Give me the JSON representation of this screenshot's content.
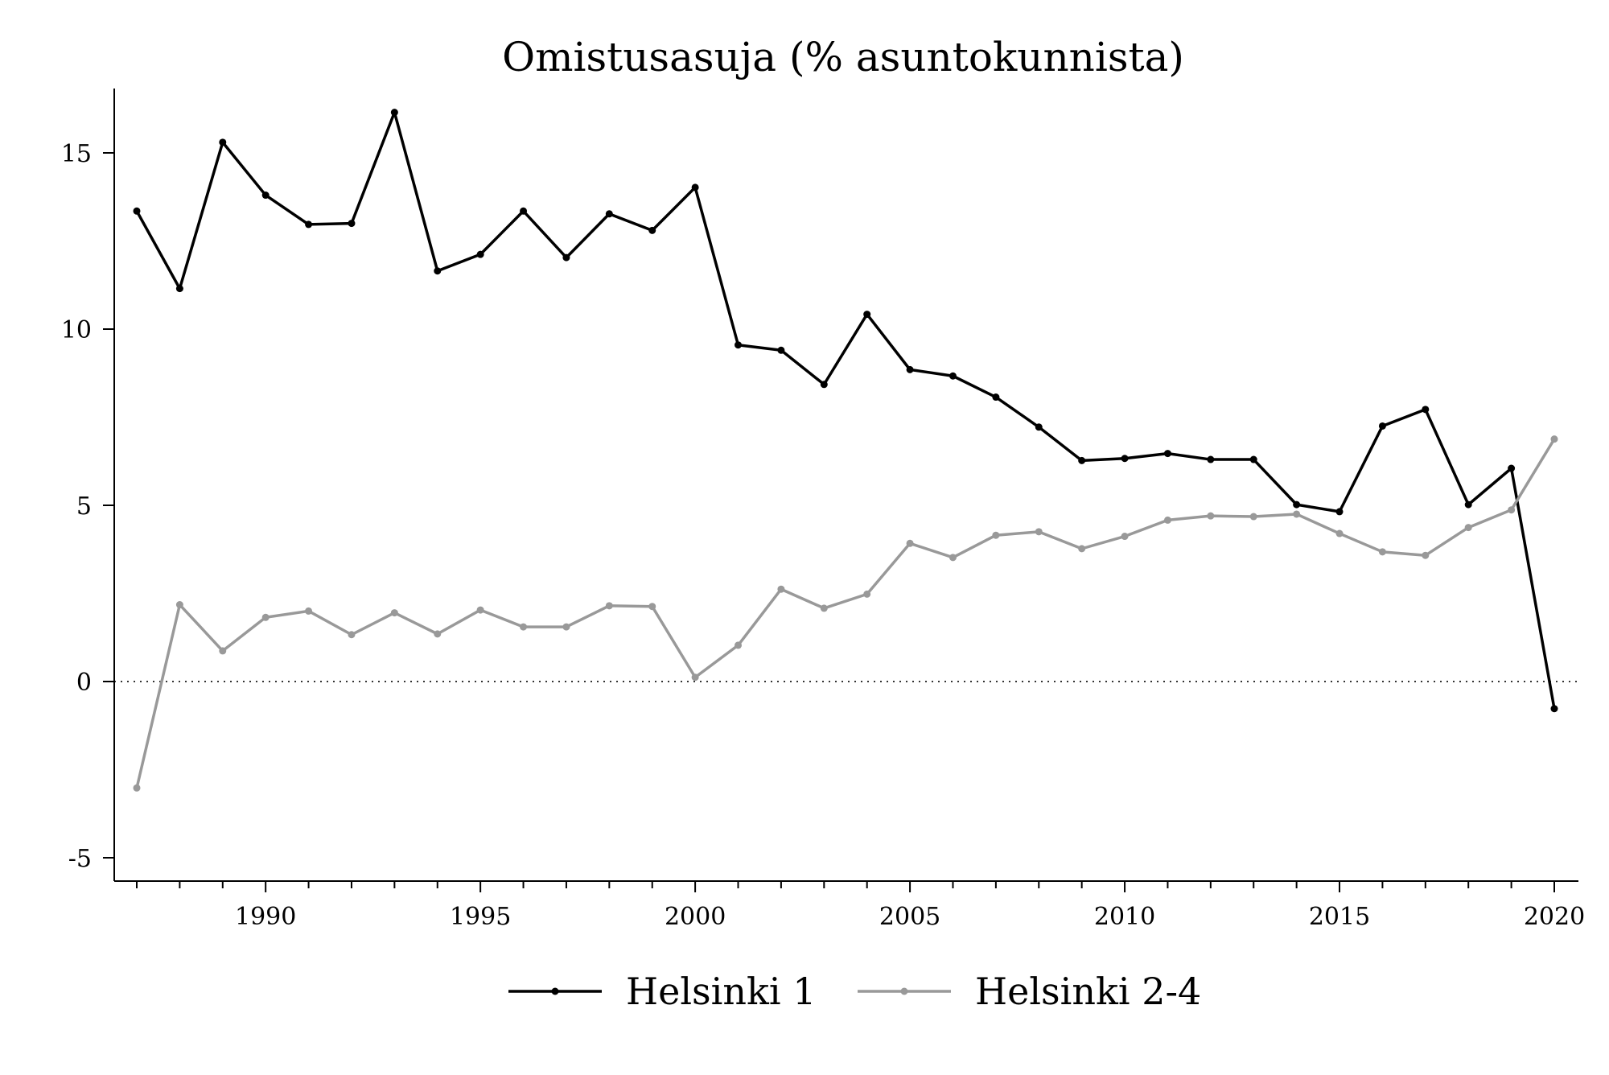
{
  "chart_data": {
    "type": "line",
    "title": "Omistusasuja (% asuntokunnista)",
    "xlabel": "",
    "ylabel": "",
    "xlim": [
      1986.5,
      2020.5
    ],
    "ylim": [
      -5.6,
      16.8
    ],
    "x_ticks": [
      1990,
      1995,
      2000,
      2005,
      2010,
      2015,
      2020
    ],
    "x_tick_labels": [
      "1990",
      "1995",
      "2000",
      "2005",
      "2010",
      "2015",
      "2020"
    ],
    "y_ticks": [
      -5,
      0,
      5,
      10,
      15
    ],
    "y_tick_labels": [
      "-5",
      "0",
      "5",
      "10",
      "15"
    ],
    "reference_line": {
      "y": 0,
      "style": "dotted"
    },
    "legend": {
      "position": "bottom"
    },
    "x": [
      1987,
      1988,
      1989,
      1990,
      1991,
      1992,
      1993,
      1994,
      1995,
      1996,
      1997,
      1998,
      1999,
      2000,
      2001,
      2002,
      2003,
      2004,
      2005,
      2006,
      2007,
      2008,
      2009,
      2010,
      2011,
      2012,
      2013,
      2014,
      2015,
      2016,
      2017,
      2018,
      2019,
      2020
    ],
    "series": [
      {
        "name": "Helsinki 1",
        "color": "#000000",
        "values": [
          13.35,
          11.15,
          15.3,
          13.8,
          12.97,
          13.0,
          16.15,
          11.65,
          12.12,
          13.35,
          12.03,
          13.27,
          12.8,
          14.02,
          9.55,
          9.4,
          8.43,
          10.42,
          8.85,
          8.67,
          8.07,
          7.22,
          6.27,
          6.33,
          6.47,
          6.3,
          6.3,
          5.02,
          4.82,
          7.25,
          7.72,
          5.02,
          6.05,
          -0.77
        ]
      },
      {
        "name": "Helsinki 2-4",
        "color": "#999999",
        "values": [
          -3.02,
          2.18,
          0.87,
          1.82,
          2.0,
          1.33,
          1.95,
          1.35,
          2.03,
          1.55,
          1.55,
          2.15,
          2.13,
          0.12,
          1.03,
          2.62,
          2.08,
          2.48,
          3.92,
          3.52,
          4.15,
          4.25,
          3.77,
          4.12,
          4.58,
          4.7,
          4.68,
          4.75,
          4.2,
          3.68,
          3.58,
          4.37,
          4.87,
          6.88
        ]
      }
    ]
  }
}
